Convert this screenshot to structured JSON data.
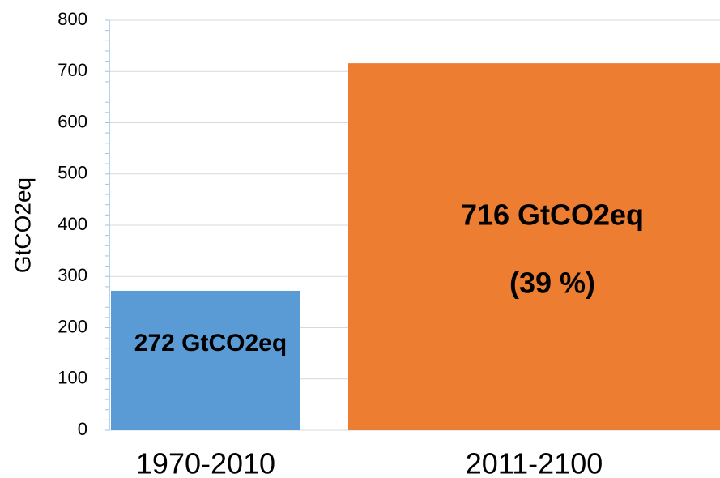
{
  "chart_data": {
    "type": "bar",
    "y_label": "GtCO2eq",
    "categories": [
      "1970-2010",
      "2011-2100"
    ],
    "values": [
      272,
      716
    ],
    "value_labels": [
      "272 GtCO2eq",
      "716 GtCO2eq"
    ],
    "annotations": [
      "(39 %)"
    ],
    "colors": [
      "#5b9bd5",
      "#ed7d31"
    ],
    "ylim": [
      0,
      800
    ],
    "yticks": [
      0,
      100,
      200,
      300,
      400,
      500,
      600,
      700,
      800
    ],
    "minor_yticks": [
      0,
      20,
      40,
      60,
      80,
      100,
      120,
      140,
      160,
      180,
      200,
      220,
      240,
      260,
      280,
      300,
      320,
      340,
      360,
      380,
      400,
      420,
      440,
      460,
      480,
      500,
      520,
      540,
      560,
      580,
      600,
      620,
      640,
      660,
      680,
      700,
      720,
      740,
      760,
      780,
      800
    ],
    "grid": true
  }
}
